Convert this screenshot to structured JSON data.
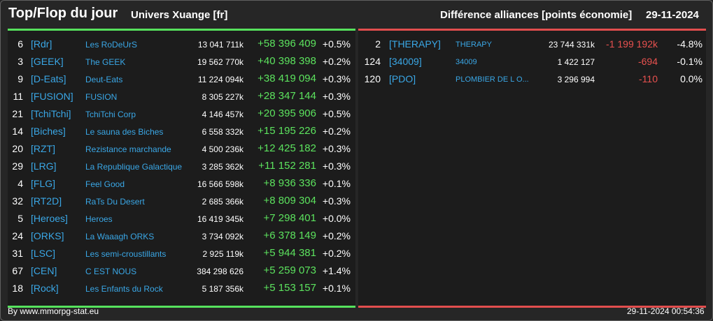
{
  "header": {
    "title": "Top/Flop du jour",
    "universe": "Univers Xuange [fr]",
    "right_title": "Différence alliances [points économie]",
    "date": "29-11-2024"
  },
  "colors": {
    "accent_top": "#56e25d",
    "accent_flop": "#e24e4e",
    "link": "#3aa7e6"
  },
  "top": [
    {
      "rank": "6",
      "tag": "[Rdr]",
      "name": "Les RoDeUrS",
      "points": "13 041 711k",
      "diff": "+58 396 409",
      "pct": "+0.5%"
    },
    {
      "rank": "3",
      "tag": "[GEEK]",
      "name": "The GEEK",
      "points": "19 562 770k",
      "diff": "+40 398 398",
      "pct": "+0.2%"
    },
    {
      "rank": "9",
      "tag": "[D-Eats]",
      "name": "Deut-Eats",
      "points": "11 224 094k",
      "diff": "+38 419 094",
      "pct": "+0.3%"
    },
    {
      "rank": "11",
      "tag": "[FUSION]",
      "name": "FUSION",
      "points": "8 305 227k",
      "diff": "+28 347 144",
      "pct": "+0.3%"
    },
    {
      "rank": "21",
      "tag": "[TchiTchi]",
      "name": "TchiTchi Corp",
      "points": "4 146 457k",
      "diff": "+20 395 906",
      "pct": "+0.5%"
    },
    {
      "rank": "14",
      "tag": "[Biches]",
      "name": "Le sauna des Biches",
      "points": "6 558 332k",
      "diff": "+15 195 226",
      "pct": "+0.2%"
    },
    {
      "rank": "20",
      "tag": "[RZT]",
      "name": "Rezistance marchande",
      "points": "4 500 236k",
      "diff": "+12 425 182",
      "pct": "+0.3%"
    },
    {
      "rank": "29",
      "tag": "[LRG]",
      "name": "La Republique Galactique",
      "points": "3 285 362k",
      "diff": "+11 152 281",
      "pct": "+0.3%"
    },
    {
      "rank": "4",
      "tag": "[FLG]",
      "name": "Feel Good",
      "points": "16 566 598k",
      "diff": "+8 936 336",
      "pct": "+0.1%"
    },
    {
      "rank": "32",
      "tag": "[RT2D]",
      "name": "RaTs Du Desert",
      "points": "2 685 366k",
      "diff": "+8 809 304",
      "pct": "+0.3%"
    },
    {
      "rank": "5",
      "tag": "[Heroes]",
      "name": "Heroes",
      "points": "16 419 345k",
      "diff": "+7 298 401",
      "pct": "+0.0%"
    },
    {
      "rank": "24",
      "tag": "[ORKS]",
      "name": "La Waaagh ORKS",
      "points": "3 734 092k",
      "diff": "+6 378 149",
      "pct": "+0.2%"
    },
    {
      "rank": "31",
      "tag": "[LSC]",
      "name": "Les semi-croustillants",
      "points": "2 925 119k",
      "diff": "+5 944 381",
      "pct": "+0.2%"
    },
    {
      "rank": "67",
      "tag": "[CEN]",
      "name": "C EST NOUS",
      "points": "384 298 626",
      "diff": "+5 259 073",
      "pct": "+1.4%"
    },
    {
      "rank": "18",
      "tag": "[Rock]",
      "name": "Les Enfants du Rock",
      "points": "5 187 356k",
      "diff": "+5 153 157",
      "pct": "+0.1%"
    }
  ],
  "flop": [
    {
      "rank": "2",
      "tag": "[THERAPY]",
      "name": "THERAPY",
      "points": "23 744 331k",
      "diff": "-1 199 192k",
      "pct": "-4.8%"
    },
    {
      "rank": "124",
      "tag": "[34009]",
      "name": "34009",
      "points": "1 422 127",
      "diff": "-694",
      "pct": "-0.1%"
    },
    {
      "rank": "120",
      "tag": "[PDO]",
      "name": "PLOMBIER DE L O...",
      "points": "3 296 994",
      "diff": "-110",
      "pct": "0.0%"
    }
  ],
  "footer": {
    "credit": "By www.mmorpg-stat.eu",
    "timestamp": "29-11-2024 00:54:36"
  }
}
